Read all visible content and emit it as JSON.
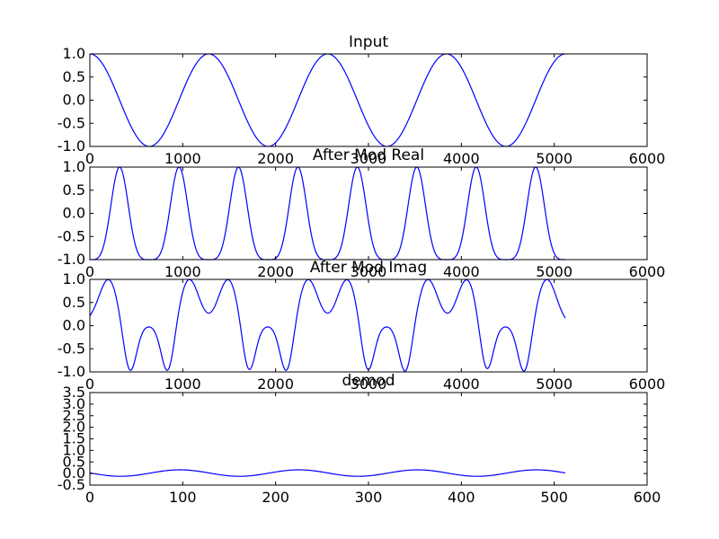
{
  "chart_data": [
    {
      "type": "line",
      "title": "Input",
      "xlabel": "",
      "ylabel": "",
      "xlim": [
        0,
        6000
      ],
      "ylim": [
        -1.0,
        1.0
      ],
      "xticks": [
        "0",
        "1000",
        "2000",
        "3000",
        "4000",
        "5000",
        "6000"
      ],
      "yticks": [
        "1.0",
        "0.5",
        "0.0",
        "-0.5",
        "-1.0"
      ],
      "line_color": "#0000ff",
      "curve": {
        "formula": "cos(2*pi*x/1280)",
        "x_start": 0,
        "x_end": 5120
      }
    },
    {
      "type": "line",
      "title": "After Mod Real",
      "xlabel": "",
      "ylabel": "",
      "xlim": [
        0,
        6000
      ],
      "ylim": [
        -1.0,
        1.0
      ],
      "xticks": [
        "0",
        "1000",
        "2000",
        "3000",
        "4000",
        "5000",
        "6000"
      ],
      "yticks": [
        "1.0",
        "0.5",
        "0.0",
        "-0.5",
        "-1.0"
      ],
      "line_color": "#0000ff",
      "curve": {
        "formula": "cos(pi*cos(2*pi*x/1280))",
        "x_start": 0,
        "x_end": 5120
      }
    },
    {
      "type": "line",
      "title": "After Mod Imag",
      "xlabel": "",
      "ylabel": "",
      "xlim": [
        0,
        6000
      ],
      "ylim": [
        -1.0,
        1.0
      ],
      "xticks": [
        "0",
        "1000",
        "2000",
        "3000",
        "4000",
        "5000",
        "6000"
      ],
      "yticks": [
        "1.0",
        "0.5",
        "0.0",
        "-0.5",
        "-1.0"
      ],
      "line_color": "#0000ff",
      "curve": {
        "formula": "sin(pi*cos(2*pi*x/1280)) (peaks near ±1 at x≈200,1070,1490,2350,2770,3640,4060,4920)",
        "x_start": 0,
        "x_end": 5120
      }
    },
    {
      "type": "line",
      "title": "demod",
      "xlabel": "",
      "ylabel": "",
      "xlim": [
        0,
        600
      ],
      "ylim": [
        -0.5,
        3.5
      ],
      "xticks": [
        "0",
        "100",
        "200",
        "300",
        "400",
        "500",
        "600"
      ],
      "yticks": [
        "3.5",
        "3.0",
        "2.5",
        "2.0",
        "1.5",
        "1.0",
        "0.5",
        "0.0",
        "-0.5"
      ],
      "line_color": "#0000ff",
      "curve": {
        "formula": "0.02 + 0.14*sin(2*pi*(x-65)/128)",
        "x_start": 0,
        "x_end": 512
      }
    }
  ]
}
